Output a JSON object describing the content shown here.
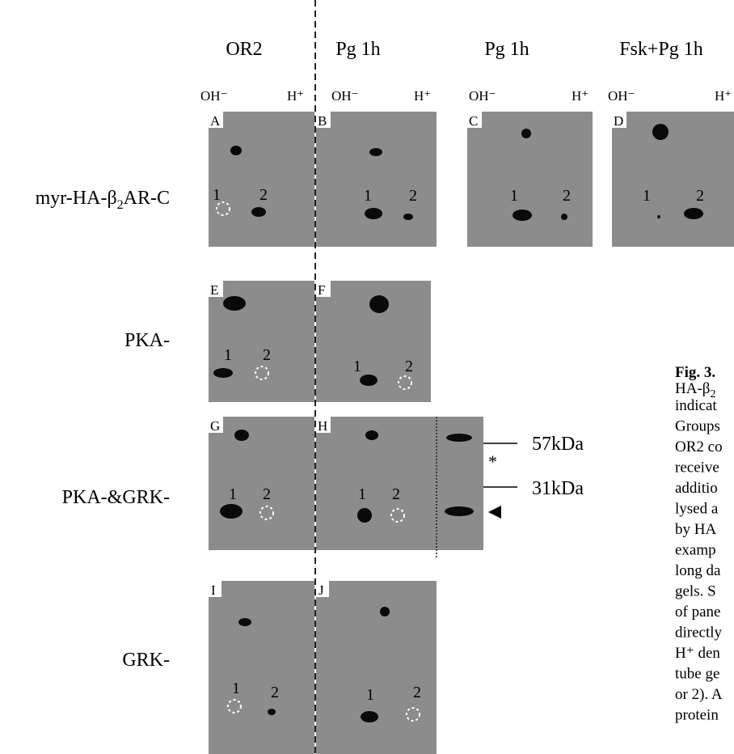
{
  "columns": [
    "OR2",
    "Pg 1h",
    "Pg 1h",
    "Fsk+Pg 1h"
  ],
  "ph_labels": {
    "basic": "OH⁻",
    "acidic": "H⁺"
  },
  "rows": [
    {
      "label": "myr-HA-β",
      "label_sub": "2",
      "label_tail": "AR-C"
    },
    {
      "label": "PKA-"
    },
    {
      "label": "PKA-&GRK-"
    },
    {
      "label": "GRK-"
    }
  ],
  "panels": [
    "A",
    "B",
    "C",
    "D",
    "E",
    "F",
    "G",
    "H",
    "I",
    "J"
  ],
  "spot_labels": [
    "1",
    "2"
  ],
  "markers": {
    "upper": "57kDa",
    "lower": "31kDa",
    "star": "*"
  },
  "caption": {
    "title": "Fig. 3.",
    "first_line": "HA-β",
    "first_line_sub": "2",
    "lines": [
      "indicat",
      "Groups",
      "OR2 co",
      "receive",
      "additio",
      "lysed a",
      "by HA",
      "examp",
      "long da",
      "gels. S",
      "of pane",
      "directly",
      "H⁺ den",
      "tube ge",
      "or 2). A",
      "protein"
    ]
  }
}
